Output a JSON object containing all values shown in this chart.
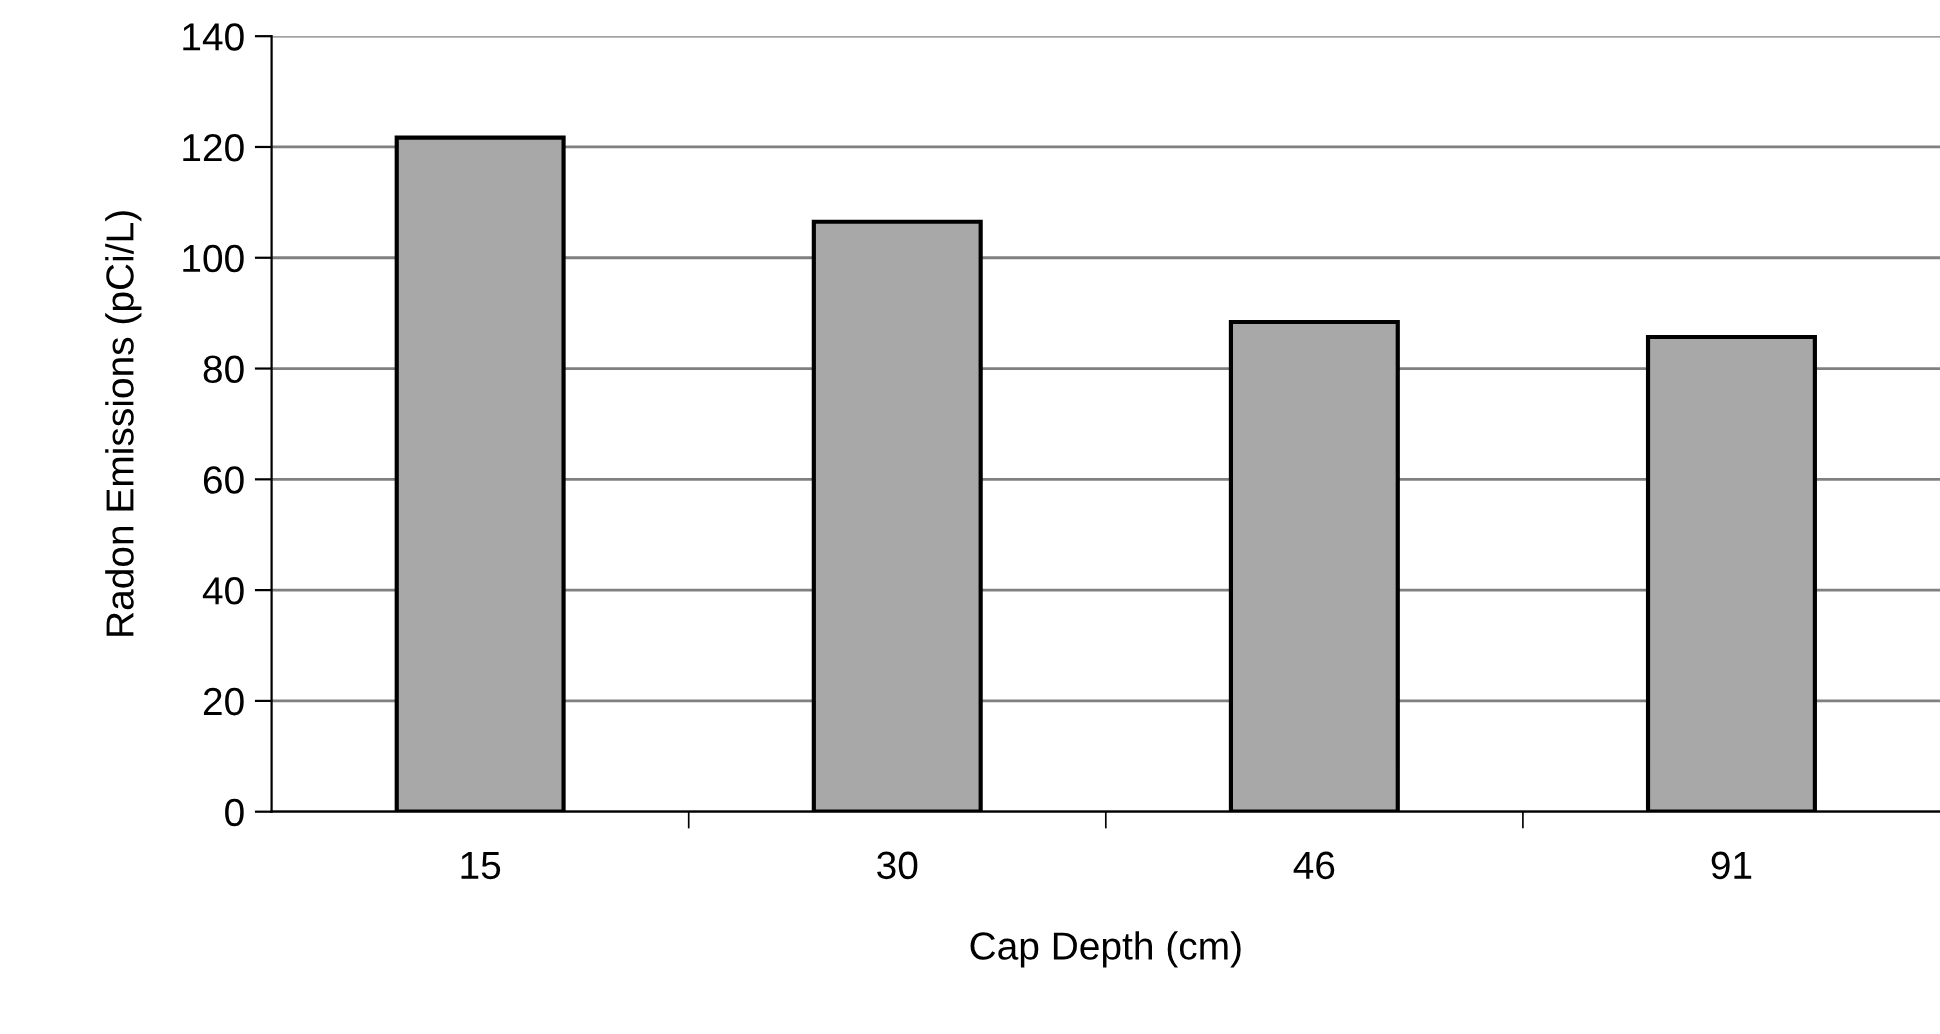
{
  "chart_data": {
    "type": "bar",
    "xlabel": "Cap Depth (cm)",
    "ylabel": "Radon Emissions (pCi/L)",
    "categories": [
      "15",
      "30",
      "46",
      "91"
    ],
    "values": [
      121.7,
      106.5,
      88.4,
      85.7
    ],
    "color": "#a8a8a8",
    "ylim": [
      0,
      140
    ],
    "yticks": [
      0,
      20,
      40,
      60,
      80,
      100,
      120,
      140
    ],
    "grid": "y"
  }
}
